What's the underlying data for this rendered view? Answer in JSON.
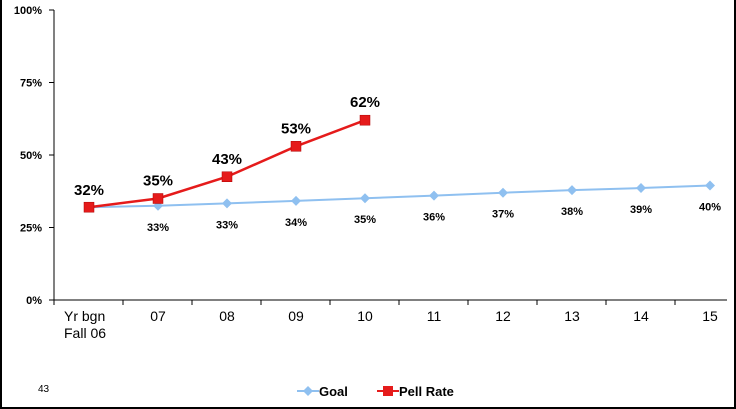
{
  "slide_number": "43",
  "chart_data": {
    "type": "line",
    "categories": [
      "Yr bgn Fall 06",
      "07",
      "08",
      "09",
      "10",
      "11",
      "12",
      "13",
      "14",
      "15"
    ],
    "category_lines": [
      [
        "Yr bgn",
        "Fall 06"
      ],
      [
        "07"
      ],
      [
        "08"
      ],
      [
        "09"
      ],
      [
        "10"
      ],
      [
        "11"
      ],
      [
        "12"
      ],
      [
        "13"
      ],
      [
        "14"
      ],
      [
        "15"
      ]
    ],
    "ylim": [
      0,
      100
    ],
    "yticks": [
      {
        "value": 0,
        "label": "0%"
      },
      {
        "value": 25,
        "label": "25%"
      },
      {
        "value": 50,
        "label": "50%"
      },
      {
        "value": 75,
        "label": "75%"
      },
      {
        "value": 100,
        "label": "100%"
      }
    ],
    "grid": false,
    "legend": "bottom",
    "series": [
      {
        "name": "Goal",
        "color": "#8fc0f0",
        "marker": "diamond",
        "values": [
          32,
          32.5,
          33.3,
          34.2,
          35.1,
          36,
          37,
          37.9,
          38.6,
          39.5
        ],
        "labels": [
          "",
          "33%",
          "33%",
          "34%",
          "35%",
          "36%",
          "37%",
          "38%",
          "39%",
          "40%"
        ]
      },
      {
        "name": "Pell Rate",
        "color": "#e51b1b",
        "marker": "square",
        "values": [
          32,
          35,
          42.5,
          53,
          62,
          null,
          null,
          null,
          null,
          null
        ],
        "labels": [
          "32%",
          "35%",
          "43%",
          "53%",
          "62%",
          "",
          "",
          "",
          "",
          ""
        ]
      }
    ]
  }
}
